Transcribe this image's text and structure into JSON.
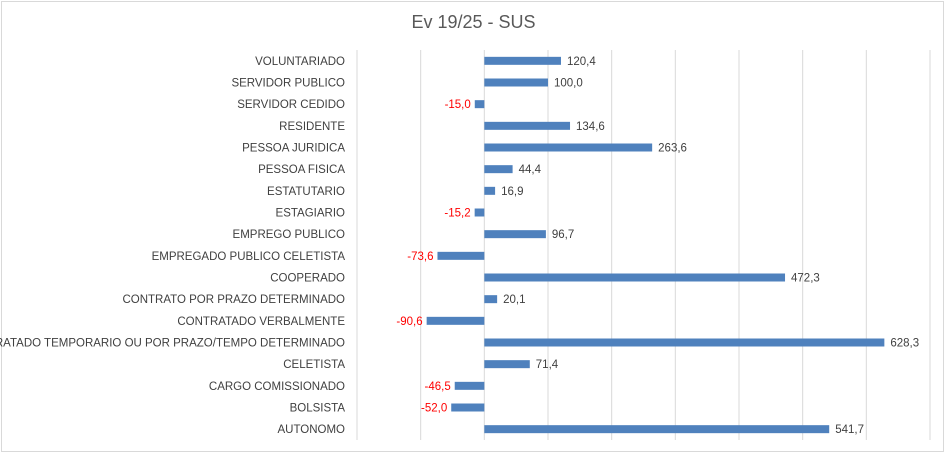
{
  "chart_data": {
    "type": "bar",
    "orientation": "horizontal",
    "title": "Ev 19/25 - SUS",
    "xlabel": "",
    "ylabel": "",
    "xlim": [
      -200,
      700
    ],
    "grid": true,
    "legend": "none",
    "bar_color": "#4f81bd",
    "positive_label_color": "#404040",
    "negative_label_color": "#ff0000",
    "categories": [
      "VOLUNTARIADO",
      "SERVIDOR PUBLICO",
      "SERVIDOR CEDIDO",
      "RESIDENTE",
      "PESSOA JURIDICA",
      "PESSOA FISICA",
      "ESTATUTARIO",
      "ESTAGIARIO",
      "EMPREGO PUBLICO",
      "EMPREGADO PUBLICO CELETISTA",
      "COOPERADO",
      "CONTRATO POR PRAZO DETERMINADO",
      "CONTRATADO VERBALMENTE",
      "CONTRATADO TEMPORARIO OU POR PRAZO/TEMPO DETERMINADO",
      "CELETISTA",
      "CARGO COMISSIONADO",
      "BOLSISTA",
      "AUTONOMO"
    ],
    "values": [
      120.4,
      100.0,
      -15.0,
      134.6,
      263.6,
      44.4,
      16.9,
      -15.2,
      96.7,
      -73.6,
      472.3,
      20.1,
      -90.6,
      628.3,
      71.4,
      -46.5,
      -52.0,
      541.7
    ],
    "value_labels": [
      "120,4",
      "100,0",
      "-15,0",
      "134,6",
      "263,6",
      "44,4",
      "16,9",
      "-15,2",
      "96,7",
      "-73,6",
      "472,3",
      "20,1",
      "-90,6",
      "628,3",
      "71,4",
      "-46,5",
      "-52,0",
      "541,7"
    ]
  }
}
